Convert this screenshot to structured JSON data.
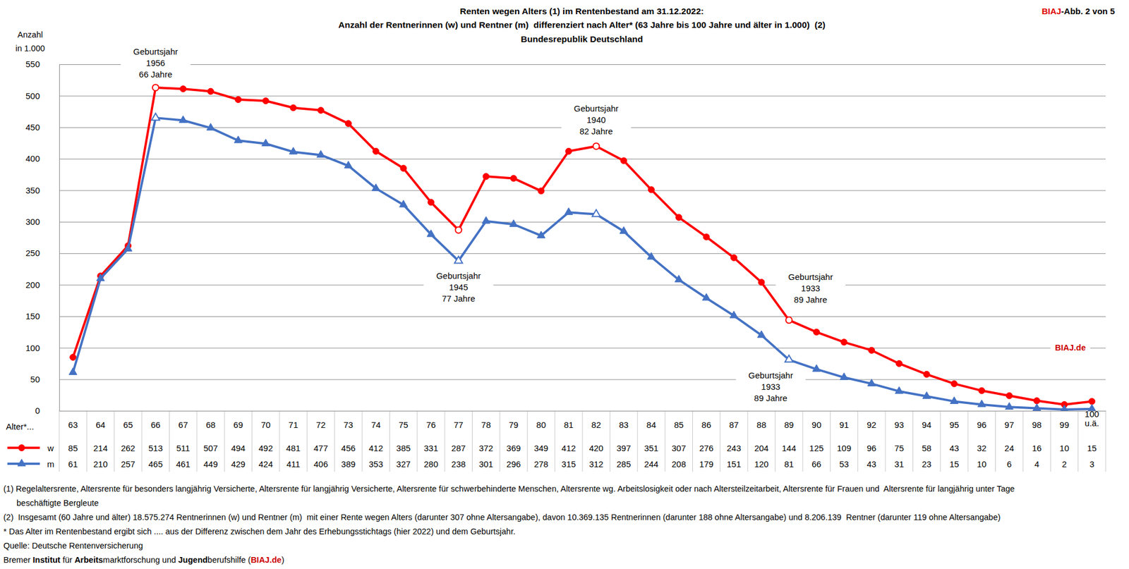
{
  "chart_data": {
    "type": "line",
    "title": [
      "Renten wegen Alters (1) im Rentenbestand am 31.12.2022:",
      "Anzahl der Rentnerinnen (w) und Rentner (m)  differenziert nach Alter* (63 Jahre bis 100 Jahre und älter in 1.000)  (2)",
      "Bundesrepublik Deutschland"
    ],
    "figure_label": [
      "BIAJ",
      "-Abb. 2 von 5"
    ],
    "y_label": [
      "Anzahl",
      "in 1.000"
    ],
    "x_label": "Alter*...",
    "categories": [
      "63",
      "64",
      "65",
      "66",
      "67",
      "68",
      "69",
      "70",
      "71",
      "72",
      "73",
      "74",
      "75",
      "76",
      "77",
      "78",
      "79",
      "80",
      "81",
      "82",
      "83",
      "84",
      "85",
      "86",
      "87",
      "88",
      "89",
      "90",
      "91",
      "92",
      "93",
      "94",
      "95",
      "96",
      "97",
      "98",
      "99",
      "100 u.ä."
    ],
    "series": [
      {
        "name": "w",
        "color": "#ff0000",
        "marker": "circle",
        "values": [
          85,
          214,
          262,
          513,
          511,
          507,
          494,
          492,
          481,
          477,
          456,
          412,
          385,
          331,
          287,
          372,
          369,
          349,
          412,
          420,
          397,
          351,
          307,
          276,
          243,
          204,
          144,
          125,
          109,
          96,
          75,
          58,
          43,
          32,
          24,
          16,
          10,
          15
        ]
      },
      {
        "name": "m",
        "color": "#4472c4",
        "marker": "triangle",
        "values": [
          61,
          210,
          257,
          465,
          461,
          449,
          429,
          424,
          411,
          406,
          389,
          353,
          327,
          280,
          238,
          301,
          296,
          278,
          315,
          312,
          285,
          244,
          208,
          179,
          151,
          120,
          81,
          66,
          53,
          43,
          31,
          23,
          15,
          10,
          6,
          4,
          2,
          3
        ]
      }
    ],
    "ylim": [
      0,
      550
    ],
    "yticks": [
      0,
      50,
      100,
      150,
      200,
      250,
      300,
      350,
      400,
      450,
      500,
      550
    ],
    "grid": true,
    "annotations": [
      {
        "text": [
          "Geburtsjahr",
          "1956",
          "66 Jahre"
        ],
        "x": "66",
        "series": [
          "w",
          "m"
        ]
      },
      {
        "text": [
          "Geburtsjahr",
          "1940",
          "82 Jahre"
        ],
        "x": "82",
        "series": [
          "w",
          "m"
        ]
      },
      {
        "text": [
          "Geburtsjahr",
          "1945",
          "77 Jahre"
        ],
        "x": "77",
        "series": [
          "m",
          "w"
        ]
      },
      {
        "text": [
          "Geburtsjahr",
          "1933",
          "89 Jahre"
        ],
        "x": "89",
        "series": [
          "w"
        ]
      },
      {
        "text": [
          "Geburtsjahr",
          "1933",
          "89 Jahre"
        ],
        "x": "89",
        "series": [
          "m"
        ]
      }
    ],
    "watermark": "BIAJ.de",
    "notes": [
      [
        "(1) Regelaltersrente, Altersrente für besonders langjährig Versicherte, Altersrente für langjährig Versicherte, Altersrente für schwerbehinderte Menschen, Altersrente wg. Arbeitslosigkeit oder nach Altersteilzeitarbeit, Altersrente für Frauen und  Altersrente für langjährig unter Tage",
        "beschäftigte Bergleute"
      ],
      [
        "(2)  Insgesamt (60 Jahre und älter) 18.575.274 Rentnerinnen (w) und Rentner (m)  mit einer Rente wegen Alters (darunter 307 ohne Altersangabe), davon 10.369.135 Rentnerinnen (darunter 188 ohne Altersangabe) und 8.206.139  Rentner (darunter 119 ohne Altersangabe)"
      ],
      [
        "* Das Alter im Rentenbestand ergibt sich .... aus der Differenz zwischen dem Jahr des Erhebungsstichtags (hier 2022) und dem Geburtsjahr."
      ],
      [
        "Quelle: Deutsche Rentenversicherung"
      ]
    ],
    "footer": [
      "Bremer ",
      "Institut",
      " für ",
      "Arbeits",
      "marktforschung und ",
      "Jugend",
      "berufshilfe (",
      "BIAJ.de",
      ")"
    ]
  }
}
